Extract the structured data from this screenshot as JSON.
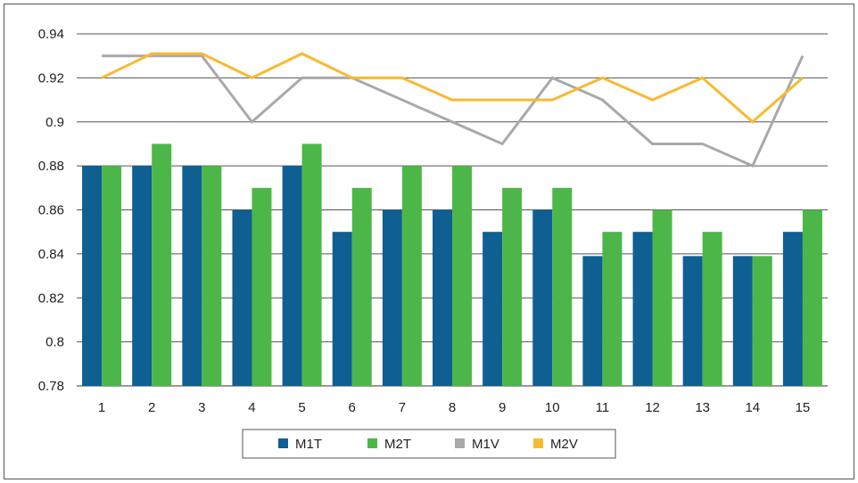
{
  "chart_data": {
    "type": "bar",
    "categories": [
      "1",
      "2",
      "3",
      "4",
      "5",
      "6",
      "7",
      "8",
      "9",
      "10",
      "11",
      "12",
      "13",
      "14",
      "15"
    ],
    "ylim": [
      0.78,
      0.94
    ],
    "yticks": [
      0.78,
      0.8,
      0.82,
      0.84,
      0.86,
      0.88,
      0.9,
      0.92,
      0.94
    ],
    "ytick_labels": [
      "0.78",
      "0.8",
      "0.82",
      "0.84",
      "0.86",
      "0.88",
      "0.9",
      "0.92",
      "0.94"
    ],
    "grid": true,
    "legend_position": "bottom",
    "bar_series": [
      {
        "name": "M1T",
        "color": "#0f5f92",
        "values": [
          0.88,
          0.88,
          0.88,
          0.86,
          0.88,
          0.85,
          0.86,
          0.86,
          0.85,
          0.86,
          0.839,
          0.85,
          0.839,
          0.839,
          0.85
        ]
      },
      {
        "name": "M2T",
        "color": "#4cb748",
        "values": [
          0.88,
          0.89,
          0.88,
          0.87,
          0.89,
          0.87,
          0.88,
          0.88,
          0.87,
          0.87,
          0.85,
          0.86,
          0.85,
          0.839,
          0.86
        ]
      }
    ],
    "line_series": [
      {
        "name": "M1V",
        "color": "#a9a9a9",
        "values": [
          0.93,
          0.93,
          0.93,
          0.9,
          0.92,
          0.92,
          0.91,
          0.9,
          0.89,
          0.92,
          0.91,
          0.89,
          0.89,
          0.88,
          0.93
        ]
      },
      {
        "name": "M2V",
        "color": "#f9b930",
        "values": [
          0.92,
          0.931,
          0.931,
          0.92,
          0.931,
          0.92,
          0.92,
          0.91,
          0.91,
          0.91,
          0.92,
          0.91,
          0.92,
          0.9,
          0.92
        ]
      }
    ]
  }
}
